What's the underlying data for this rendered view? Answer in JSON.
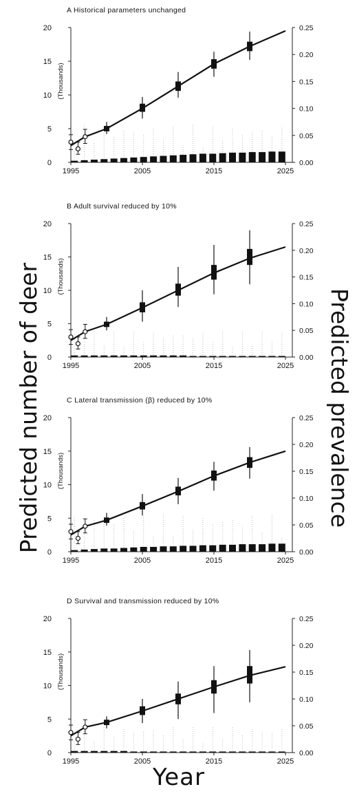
{
  "figure": {
    "ylabel_left": "Predicted number of deer",
    "ylabel_right": "Predicted prevalence",
    "xlabel": "Year",
    "axis_unit_label": "(Thousands)"
  },
  "chart_data": [
    {
      "type": "line",
      "title": "A  Historical parameters unchanged",
      "xlim": [
        1995,
        2025
      ],
      "x_ticks": [
        "1995",
        "2005",
        "2015",
        "2025"
      ],
      "ylim_left": [
        0,
        20
      ],
      "y_ticks_left": [
        "0",
        "5",
        "10",
        "15",
        "20"
      ],
      "ylim_right": [
        0,
        0.25
      ],
      "y_ticks_right": [
        "0.00",
        "0.05",
        "0.10",
        "0.15",
        "0.20",
        "0.25"
      ],
      "number_line": {
        "x": [
          1995,
          1997,
          2000,
          2005,
          2010,
          2015,
          2020,
          2025
        ],
        "y": [
          2.5,
          3.8,
          5.0,
          8.0,
          11.3,
          14.6,
          17.2,
          19.5
        ]
      },
      "number_boxes": [
        {
          "x": 2000,
          "q1": 4.6,
          "q3": 5.4,
          "low": 4.2,
          "high": 6.0
        },
        {
          "x": 2005,
          "q1": 7.5,
          "q3": 8.7,
          "low": 6.5,
          "high": 9.7
        },
        {
          "x": 2010,
          "q1": 10.6,
          "q3": 12.0,
          "low": 9.6,
          "high": 13.4
        },
        {
          "x": 2015,
          "q1": 13.9,
          "q3": 15.3,
          "low": 12.7,
          "high": 16.4
        },
        {
          "x": 2020,
          "q1": 16.5,
          "q3": 17.9,
          "low": 15.2,
          "high": 19.4
        }
      ],
      "observed": [
        {
          "x": 1995,
          "y": 3.0,
          "low": 1.9,
          "high": 4.1
        },
        {
          "x": 1996,
          "y": 2.0,
          "low": 1.2,
          "high": 3.0
        },
        {
          "x": 1997,
          "y": 3.8,
          "low": 2.8,
          "high": 4.9
        }
      ],
      "prevalence_median": [
        0.003,
        0.004,
        0.005,
        0.006,
        0.007,
        0.008,
        0.009,
        0.01,
        0.011,
        0.012,
        0.013,
        0.014,
        0.015,
        0.016,
        0.016,
        0.017,
        0.018,
        0.018,
        0.019,
        0.019,
        0.02,
        0.02
      ],
      "prevalence_spread_high": 0.07
    },
    {
      "type": "line",
      "title": "B  Adult survival reduced by 10%",
      "xlim": [
        1995,
        2025
      ],
      "x_ticks": [
        "1995",
        "2005",
        "2015",
        "2025"
      ],
      "ylim_left": [
        0,
        20
      ],
      "y_ticks_left": [
        "0",
        "5",
        "10",
        "15",
        "20"
      ],
      "ylim_right": [
        0,
        0.25
      ],
      "y_ticks_right": [
        "0.00",
        "0.05",
        "0.10",
        "0.15",
        "0.20",
        "0.25"
      ],
      "number_line": {
        "x": [
          1995,
          1997,
          2000,
          2005,
          2010,
          2015,
          2020,
          2025
        ],
        "y": [
          2.5,
          3.8,
          4.9,
          7.4,
          10.0,
          12.6,
          14.8,
          16.5
        ]
      },
      "number_boxes": [
        {
          "x": 2000,
          "q1": 4.5,
          "q3": 5.3,
          "low": 4.0,
          "high": 6.0
        },
        {
          "x": 2005,
          "q1": 6.7,
          "q3": 8.2,
          "low": 5.3,
          "high": 10.0
        },
        {
          "x": 2010,
          "q1": 9.2,
          "q3": 11.0,
          "low": 7.5,
          "high": 13.5
        },
        {
          "x": 2015,
          "q1": 11.6,
          "q3": 13.8,
          "low": 9.4,
          "high": 16.8
        },
        {
          "x": 2020,
          "q1": 13.8,
          "q3": 16.2,
          "low": 10.9,
          "high": 19.0
        }
      ],
      "observed": [
        {
          "x": 1995,
          "y": 3.0,
          "low": 1.9,
          "high": 4.1
        },
        {
          "x": 1996,
          "y": 2.0,
          "low": 1.2,
          "high": 3.0
        },
        {
          "x": 1997,
          "y": 3.8,
          "low": 2.8,
          "high": 4.9
        }
      ],
      "prevalence_median": [
        0.003,
        0.003,
        0.003,
        0.003,
        0.003,
        0.003,
        0.003,
        0.003,
        0.003,
        0.003,
        0.003,
        0.003,
        0.002,
        0.002,
        0.002,
        0.002,
        0.002,
        0.002,
        0.002,
        0.002,
        0.002,
        0.002
      ],
      "prevalence_spread_high": 0.05
    },
    {
      "type": "line",
      "title": "C  Lateral transmission (β) reduced by 10%",
      "xlim": [
        1995,
        2025
      ],
      "x_ticks": [
        "1995",
        "2005",
        "2015",
        "2025"
      ],
      "ylim_left": [
        0,
        20
      ],
      "y_ticks_left": [
        "0",
        "5",
        "10",
        "15",
        "20"
      ],
      "ylim_right": [
        0,
        0.25
      ],
      "y_ticks_right": [
        "0.00",
        "0.05",
        "0.10",
        "0.15",
        "0.20",
        "0.25"
      ],
      "number_line": {
        "x": [
          1995,
          1997,
          2000,
          2005,
          2010,
          2015,
          2020,
          2025
        ],
        "y": [
          2.5,
          3.8,
          4.7,
          6.8,
          9.0,
          11.3,
          13.3,
          15.0
        ]
      },
      "number_boxes": [
        {
          "x": 2000,
          "q1": 4.3,
          "q3": 5.1,
          "low": 3.9,
          "high": 5.8
        },
        {
          "x": 2005,
          "q1": 6.3,
          "q3": 7.4,
          "low": 5.4,
          "high": 8.6
        },
        {
          "x": 2010,
          "q1": 8.4,
          "q3": 9.7,
          "low": 7.1,
          "high": 11.0
        },
        {
          "x": 2015,
          "q1": 10.6,
          "q3": 12.1,
          "low": 9.1,
          "high": 13.4
        },
        {
          "x": 2020,
          "q1": 12.5,
          "q3": 14.1,
          "low": 10.9,
          "high": 15.6
        }
      ],
      "observed": [
        {
          "x": 1995,
          "y": 3.0,
          "low": 1.9,
          "high": 4.1
        },
        {
          "x": 1996,
          "y": 2.0,
          "low": 1.2,
          "high": 3.0
        },
        {
          "x": 1997,
          "y": 3.8,
          "low": 2.8,
          "high": 4.9
        }
      ],
      "prevalence_median": [
        0.003,
        0.004,
        0.005,
        0.006,
        0.006,
        0.007,
        0.008,
        0.009,
        0.009,
        0.01,
        0.01,
        0.011,
        0.011,
        0.012,
        0.012,
        0.013,
        0.013,
        0.014,
        0.014,
        0.014,
        0.015,
        0.015
      ],
      "prevalence_spread_high": 0.07
    },
    {
      "type": "line",
      "title": "D  Survival and transmission reduced by 10%",
      "xlim": [
        1995,
        2025
      ],
      "x_ticks": [
        "1995",
        "2005",
        "2015",
        "2025"
      ],
      "ylim_left": [
        0,
        20
      ],
      "y_ticks_left": [
        "0",
        "5",
        "10",
        "15",
        "20"
      ],
      "ylim_right": [
        0,
        0.25
      ],
      "y_ticks_right": [
        "0.00",
        "0.05",
        "0.10",
        "0.15",
        "0.20",
        "0.25"
      ],
      "number_line": {
        "x": [
          1995,
          1997,
          2000,
          2005,
          2010,
          2015,
          2020,
          2025
        ],
        "y": [
          2.5,
          3.8,
          4.5,
          6.2,
          8.0,
          9.8,
          11.5,
          12.8
        ]
      },
      "number_boxes": [
        {
          "x": 2000,
          "q1": 4.1,
          "q3": 4.9,
          "low": 3.6,
          "high": 5.4
        },
        {
          "x": 2005,
          "q1": 5.6,
          "q3": 6.9,
          "low": 4.4,
          "high": 8.0
        },
        {
          "x": 2010,
          "q1": 7.2,
          "q3": 8.8,
          "low": 5.0,
          "high": 10.6
        },
        {
          "x": 2015,
          "q1": 8.8,
          "q3": 10.8,
          "low": 5.9,
          "high": 12.9
        },
        {
          "x": 2020,
          "q1": 10.3,
          "q3": 12.9,
          "low": 7.5,
          "high": 15.3
        }
      ],
      "observed": [
        {
          "x": 1995,
          "y": 3.0,
          "low": 1.9,
          "high": 4.1
        },
        {
          "x": 1996,
          "y": 2.0,
          "low": 1.2,
          "high": 3.0
        },
        {
          "x": 1997,
          "y": 3.8,
          "low": 2.8,
          "high": 4.9
        }
      ],
      "prevalence_median": [
        0.003,
        0.003,
        0.003,
        0.003,
        0.003,
        0.003,
        0.002,
        0.002,
        0.002,
        0.002,
        0.002,
        0.002,
        0.002,
        0.002,
        0.002,
        0.002,
        0.002,
        0.002,
        0.002,
        0.002,
        0.002,
        0.002
      ],
      "prevalence_spread_high": 0.05
    }
  ]
}
